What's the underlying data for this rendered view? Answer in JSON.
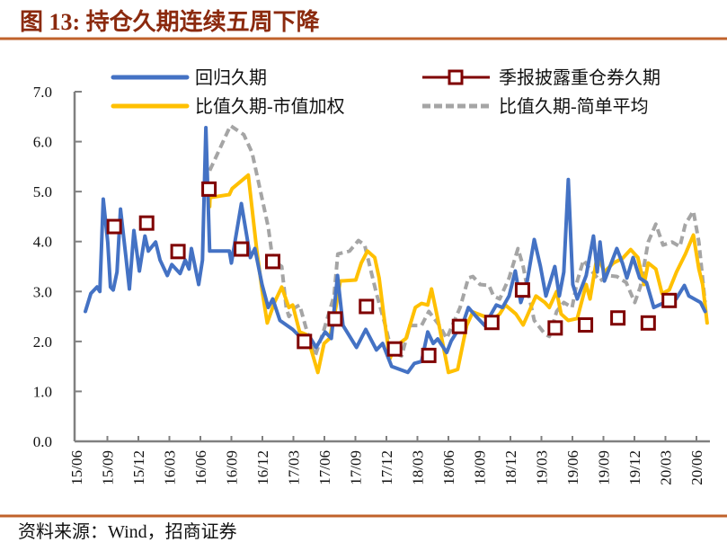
{
  "title": "图 13:  持仓久期连续五周下降",
  "source": "资料来源：Wind，招商证券",
  "colors": {
    "title": "#8B2A0E",
    "rule": "#C0622B",
    "blue": "#4472C4",
    "yellow": "#FFC000",
    "gray": "#A5A5A5",
    "marker": "#7F0000",
    "axis": "#808080"
  },
  "chart_data": {
    "type": "line",
    "ylim": [
      0,
      7
    ],
    "yticks": [
      "0.0",
      "1.0",
      "2.0",
      "3.0",
      "4.0",
      "5.0",
      "6.0",
      "7.0"
    ],
    "xticks": [
      "15/06",
      "15/09",
      "15/12",
      "16/03",
      "16/06",
      "16/09",
      "16/12",
      "17/03",
      "17/06",
      "17/09",
      "17/12",
      "18/03",
      "18/06",
      "18/09",
      "18/12",
      "19/03",
      "19/06",
      "19/09",
      "19/12",
      "20/03",
      "20/06"
    ],
    "grid": false,
    "legend_position": "top",
    "series": [
      {
        "name": "回归久期",
        "style": "solid",
        "color": "#4472C4",
        "points": [
          [
            "2015-07-26",
            2.6
          ],
          [
            "2015-08-12",
            2.96
          ],
          [
            "2015-08-30",
            3.09
          ],
          [
            "2015-09-08",
            3.0
          ],
          [
            "2015-09-18",
            4.85
          ],
          [
            "2015-10-01",
            3.99
          ],
          [
            "2015-10-09",
            3.09
          ],
          [
            "2015-10-17",
            3.03
          ],
          [
            "2015-10-28",
            3.39
          ],
          [
            "2015-11-08",
            4.65
          ],
          [
            "2015-11-24",
            3.68
          ],
          [
            "2015-12-04",
            3.05
          ],
          [
            "2015-12-17",
            4.22
          ],
          [
            "2016-01-03",
            3.41
          ],
          [
            "2016-01-19",
            4.11
          ],
          [
            "2016-01-29",
            3.81
          ],
          [
            "2016-02-20",
            3.99
          ],
          [
            "2016-03-03",
            3.63
          ],
          [
            "2016-03-24",
            3.32
          ],
          [
            "2016-04-07",
            3.54
          ],
          [
            "2016-05-01",
            3.36
          ],
          [
            "2016-05-16",
            3.63
          ],
          [
            "2016-05-27",
            3.45
          ],
          [
            "2016-06-04",
            3.86
          ],
          [
            "2016-06-25",
            3.14
          ],
          [
            "2016-07-06",
            3.63
          ],
          [
            "2016-07-16",
            6.28
          ],
          [
            "2016-07-27",
            3.81
          ],
          [
            "2016-09-24",
            3.81
          ],
          [
            "2016-09-30",
            3.57
          ],
          [
            "2016-10-29",
            4.76
          ],
          [
            "2016-11-25",
            3.68
          ],
          [
            "2016-12-08",
            3.86
          ],
          [
            "2016-12-29",
            3.14
          ],
          [
            "2017-01-17",
            2.68
          ],
          [
            "2017-01-30",
            2.85
          ],
          [
            "2017-02-21",
            2.42
          ],
          [
            "2017-03-28",
            2.24
          ],
          [
            "2017-04-24",
            2.06
          ],
          [
            "2017-05-20",
            2.06
          ],
          [
            "2017-06-06",
            1.88
          ],
          [
            "2017-07-02",
            2.19
          ],
          [
            "2017-07-20",
            2.06
          ],
          [
            "2017-08-08",
            3.32
          ],
          [
            "2017-08-24",
            2.32
          ],
          [
            "2017-10-03",
            1.88
          ],
          [
            "2017-10-30",
            2.24
          ],
          [
            "2017-12-01",
            1.83
          ],
          [
            "2017-12-19",
            1.96
          ],
          [
            "2018-01-15",
            1.5
          ],
          [
            "2018-03-02",
            1.38
          ],
          [
            "2018-03-21",
            1.56
          ],
          [
            "2018-04-12",
            1.6
          ],
          [
            "2018-04-30",
            2.19
          ],
          [
            "2018-05-16",
            1.96
          ],
          [
            "2018-05-29",
            2.05
          ],
          [
            "2018-06-25",
            1.78
          ],
          [
            "2018-07-08",
            2.01
          ],
          [
            "2018-08-15",
            2.42
          ],
          [
            "2018-08-28",
            2.68
          ],
          [
            "2018-09-19",
            2.51
          ],
          [
            "2018-10-15",
            2.32
          ],
          [
            "2018-11-19",
            2.73
          ],
          [
            "2018-12-07",
            2.68
          ],
          [
            "2018-12-26",
            2.91
          ],
          [
            "2019-01-14",
            3.41
          ],
          [
            "2019-01-30",
            2.78
          ],
          [
            "2019-02-17",
            3.14
          ],
          [
            "2019-03-09",
            4.04
          ],
          [
            "2019-03-27",
            3.5
          ],
          [
            "2019-04-13",
            2.91
          ],
          [
            "2019-05-09",
            3.5
          ],
          [
            "2019-05-22",
            2.91
          ],
          [
            "2019-06-05",
            3.39
          ],
          [
            "2019-06-18",
            5.24
          ],
          [
            "2019-07-01",
            3.14
          ],
          [
            "2019-07-14",
            2.85
          ],
          [
            "2019-08-10",
            3.32
          ],
          [
            "2019-08-31",
            4.11
          ],
          [
            "2019-09-12",
            3.39
          ],
          [
            "2019-09-20",
            3.99
          ],
          [
            "2019-10-03",
            3.21
          ],
          [
            "2019-11-09",
            3.86
          ],
          [
            "2019-11-25",
            3.57
          ],
          [
            "2019-12-08",
            3.27
          ],
          [
            "2019-12-26",
            3.68
          ],
          [
            "2020-01-15",
            3.27
          ],
          [
            "2020-02-05",
            3.18
          ],
          [
            "2020-02-26",
            2.68
          ],
          [
            "2020-03-28",
            2.78
          ],
          [
            "2020-05-01",
            2.85
          ],
          [
            "2020-05-25",
            3.12
          ],
          [
            "2020-06-08",
            2.91
          ],
          [
            "2020-07-12",
            2.78
          ],
          [
            "2020-07-25",
            2.6
          ]
        ]
      },
      {
        "name": "比值久期-市值加权",
        "style": "solid",
        "color": "#FFC000",
        "points": [
          [
            "2016-07-27",
            4.7
          ],
          [
            "2016-07-28",
            4.88
          ],
          [
            "2016-09-24",
            4.94
          ],
          [
            "2016-10-02",
            5.06
          ],
          [
            "2016-11-19",
            5.33
          ],
          [
            "2016-12-13",
            3.86
          ],
          [
            "2016-12-29",
            3.03
          ],
          [
            "2017-01-14",
            2.37
          ],
          [
            "2017-02-05",
            2.78
          ],
          [
            "2017-02-26",
            3.09
          ],
          [
            "2017-03-17",
            2.68
          ],
          [
            "2017-03-28",
            2.73
          ],
          [
            "2017-04-18",
            2.19
          ],
          [
            "2017-05-07",
            2.14
          ],
          [
            "2017-05-22",
            1.83
          ],
          [
            "2017-06-11",
            1.38
          ],
          [
            "2017-06-29",
            1.96
          ],
          [
            "2017-07-15",
            2.06
          ],
          [
            "2017-08-03",
            2.68
          ],
          [
            "2017-08-16",
            3.21
          ],
          [
            "2017-10-01",
            3.23
          ],
          [
            "2017-10-17",
            3.57
          ],
          [
            "2017-11-05",
            3.81
          ],
          [
            "2017-11-26",
            3.68
          ],
          [
            "2017-12-09",
            3.27
          ],
          [
            "2017-12-22",
            2.55
          ],
          [
            "2018-01-10",
            1.65
          ],
          [
            "2018-01-23",
            1.88
          ],
          [
            "2018-02-27",
            2.06
          ],
          [
            "2018-03-24",
            2.68
          ],
          [
            "2018-04-12",
            2.76
          ],
          [
            "2018-04-30",
            2.73
          ],
          [
            "2018-05-11",
            3.05
          ],
          [
            "2018-05-26",
            2.55
          ],
          [
            "2018-06-12",
            2.01
          ],
          [
            "2018-06-30",
            1.38
          ],
          [
            "2018-07-27",
            1.44
          ],
          [
            "2018-08-23",
            2.32
          ],
          [
            "2018-09-11",
            2.59
          ],
          [
            "2018-10-15",
            2.5
          ],
          [
            "2018-11-06",
            2.42
          ],
          [
            "2018-11-29",
            2.55
          ],
          [
            "2018-12-15",
            2.73
          ],
          [
            "2019-01-16",
            2.55
          ],
          [
            "2019-02-07",
            2.33
          ],
          [
            "2019-03-14",
            2.91
          ],
          [
            "2019-04-10",
            2.78
          ],
          [
            "2019-04-23",
            2.68
          ],
          [
            "2019-05-14",
            3.0
          ],
          [
            "2019-05-27",
            2.55
          ],
          [
            "2019-06-18",
            2.42
          ],
          [
            "2019-07-14",
            2.46
          ],
          [
            "2019-08-10",
            3.14
          ],
          [
            "2019-08-21",
            2.85
          ],
          [
            "2019-09-12",
            3.72
          ],
          [
            "2019-10-03",
            3.39
          ],
          [
            "2019-10-29",
            3.57
          ],
          [
            "2019-11-25",
            3.66
          ],
          [
            "2019-12-19",
            3.84
          ],
          [
            "2020-01-10",
            3.68
          ],
          [
            "2020-01-28",
            3.14
          ],
          [
            "2020-02-10",
            3.57
          ],
          [
            "2020-03-02",
            3.45
          ],
          [
            "2020-03-20",
            2.96
          ],
          [
            "2020-04-11",
            3.03
          ],
          [
            "2020-05-02",
            3.39
          ],
          [
            "2020-05-28",
            3.75
          ],
          [
            "2020-06-21",
            4.13
          ],
          [
            "2020-07-07",
            3.45
          ],
          [
            "2020-07-18",
            3.14
          ],
          [
            "2020-07-31",
            2.37
          ]
        ]
      },
      {
        "name": "比值久期-简单平均",
        "style": "dashed",
        "color": "#A5A5A5",
        "points": [
          [
            "2016-07-27",
            5.42
          ],
          [
            "2016-08-09",
            5.6
          ],
          [
            "2016-09-27",
            6.32
          ],
          [
            "2016-11-06",
            6.14
          ],
          [
            "2016-11-30",
            5.78
          ],
          [
            "2016-12-21",
            5.12
          ],
          [
            "2017-01-17",
            4.29
          ],
          [
            "2017-01-30",
            3.63
          ],
          [
            "2017-02-26",
            3.5
          ],
          [
            "2017-03-09",
            2.68
          ],
          [
            "2017-03-17",
            2.5
          ],
          [
            "2017-04-05",
            2.68
          ],
          [
            "2017-04-18",
            2.73
          ],
          [
            "2017-05-10",
            2.19
          ],
          [
            "2017-06-03",
            1.71
          ],
          [
            "2017-06-29",
            2.24
          ],
          [
            "2017-07-28",
            2.91
          ],
          [
            "2017-08-09",
            3.75
          ],
          [
            "2017-09-13",
            3.81
          ],
          [
            "2017-10-09",
            4.02
          ],
          [
            "2017-10-27",
            3.93
          ],
          [
            "2017-12-01",
            2.96
          ],
          [
            "2017-12-27",
            2.32
          ],
          [
            "2018-01-16",
            1.78
          ],
          [
            "2018-02-14",
            1.71
          ],
          [
            "2018-03-08",
            2.32
          ],
          [
            "2018-04-12",
            2.32
          ],
          [
            "2018-05-03",
            2.6
          ],
          [
            "2018-06-04",
            2.32
          ],
          [
            "2018-06-25",
            2.06
          ],
          [
            "2018-08-04",
            2.68
          ],
          [
            "2018-08-28",
            3.27
          ],
          [
            "2018-09-11",
            3.3
          ],
          [
            "2018-10-02",
            3.14
          ],
          [
            "2018-10-28",
            3.12
          ],
          [
            "2018-11-11",
            2.91
          ],
          [
            "2018-11-29",
            2.85
          ],
          [
            "2018-12-26",
            3.27
          ],
          [
            "2019-01-22",
            3.86
          ],
          [
            "2019-02-07",
            3.5
          ],
          [
            "2019-02-20",
            3.03
          ],
          [
            "2019-03-09",
            2.42
          ],
          [
            "2019-04-10",
            2.15
          ],
          [
            "2019-04-23",
            2.1
          ],
          [
            "2019-05-14",
            2.6
          ],
          [
            "2019-06-05",
            2.78
          ],
          [
            "2019-06-29",
            2.68
          ],
          [
            "2019-07-14",
            3.21
          ],
          [
            "2019-08-02",
            3.63
          ],
          [
            "2019-08-21",
            3.45
          ],
          [
            "2019-09-20",
            3.21
          ],
          [
            "2019-10-13",
            3.32
          ],
          [
            "2019-11-09",
            3.3
          ],
          [
            "2019-12-06",
            3.18
          ],
          [
            "2019-12-31",
            2.78
          ],
          [
            "2020-01-17",
            3.09
          ],
          [
            "2020-02-10",
            3.99
          ],
          [
            "2020-03-02",
            4.35
          ],
          [
            "2020-03-23",
            3.93
          ],
          [
            "2020-04-19",
            3.99
          ],
          [
            "2020-05-12",
            3.9
          ],
          [
            "2020-05-28",
            4.35
          ],
          [
            "2020-06-21",
            4.61
          ],
          [
            "2020-07-07",
            3.99
          ],
          [
            "2020-07-25",
            2.78
          ]
        ]
      },
      {
        "name": "季报披露重仓券久期",
        "style": "marker",
        "color": "#7F0000",
        "points": [
          [
            "2015-10-20",
            4.3
          ],
          [
            "2016-01-24",
            4.37
          ],
          [
            "2016-04-25",
            3.8
          ],
          [
            "2016-07-25",
            5.05
          ],
          [
            "2016-10-29",
            3.85
          ],
          [
            "2017-01-30",
            3.6
          ],
          [
            "2017-05-02",
            2.0
          ],
          [
            "2017-07-31",
            2.45
          ],
          [
            "2017-11-02",
            2.7
          ],
          [
            "2018-01-24",
            1.85
          ],
          [
            "2018-05-03",
            1.72
          ],
          [
            "2018-08-02",
            2.3
          ],
          [
            "2018-11-06",
            2.38
          ],
          [
            "2019-02-05",
            3.03
          ],
          [
            "2019-05-10",
            2.27
          ],
          [
            "2019-08-08",
            2.33
          ],
          [
            "2019-11-12",
            2.47
          ],
          [
            "2020-02-10",
            2.37
          ],
          [
            "2020-04-11",
            2.82
          ]
        ]
      }
    ]
  }
}
